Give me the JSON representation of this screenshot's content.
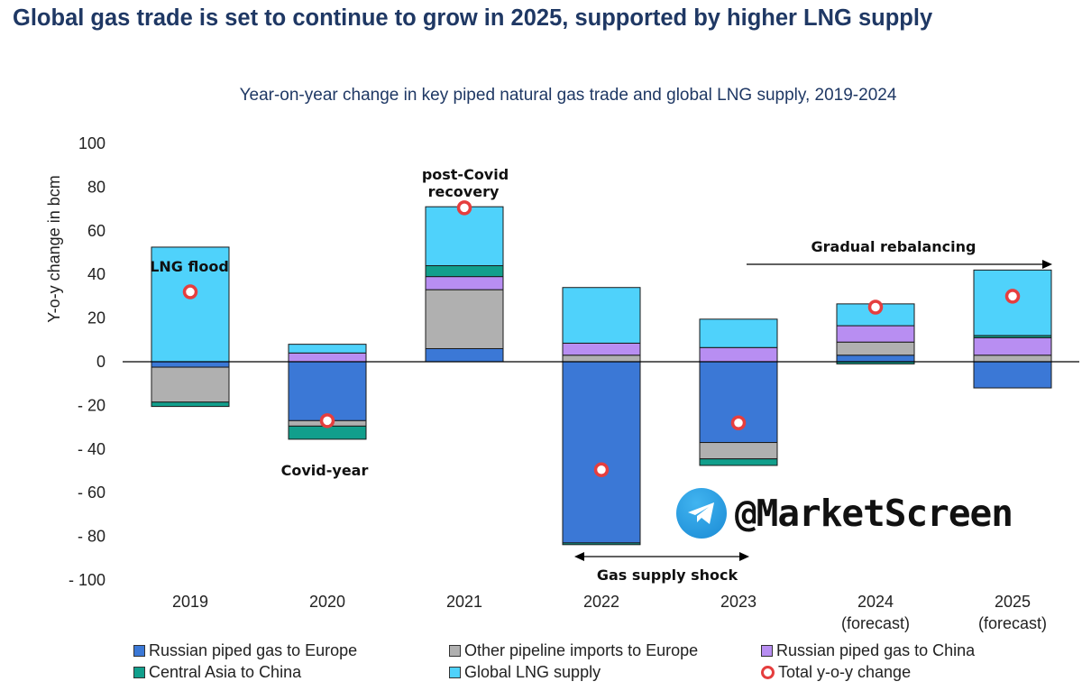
{
  "headline": "Global gas trade is set to continue to grow in 2025, supported by higher LNG supply",
  "chart_data": {
    "type": "bar",
    "stacked": true,
    "title": "Year-on-year change in key piped natural gas trade and global LNG supply, 2019-2024",
    "ylabel": "Y-o-y change in bcm",
    "ylim": [
      -100,
      100
    ],
    "yticks": [
      100,
      80,
      60,
      40,
      20,
      0,
      -20,
      -40,
      -60,
      -80,
      -100
    ],
    "ytick_labels": [
      "100",
      "80",
      "60",
      "40",
      "20",
      "0",
      "- 20",
      "- 40",
      "- 60",
      "- 80",
      "- 100"
    ],
    "categories": [
      "2019",
      "2020",
      "2021",
      "2022",
      "2023",
      "2024",
      "2025"
    ],
    "category_sublabels": [
      "",
      "",
      "",
      "",
      "",
      "(forecast)",
      "(forecast)"
    ],
    "series": [
      {
        "name": "Russian piped gas to Europe",
        "color": "#3b78d6",
        "values": [
          -2.5,
          -27,
          6,
          -83,
          -37,
          3,
          -12
        ]
      },
      {
        "name": "Other pipeline imports to Europe",
        "color": "#b0b0b0",
        "values": [
          -16,
          -2.5,
          27,
          3,
          -7.5,
          6,
          3
        ]
      },
      {
        "name": "Russian piped gas to China",
        "color": "#b88ef2",
        "values": [
          0,
          4,
          6,
          5.5,
          6.5,
          7.5,
          8
        ]
      },
      {
        "name": "Central Asia to China",
        "color": "#119f8c",
        "values": [
          -2,
          -6,
          5,
          -0.8,
          -3,
          -1,
          1
        ]
      },
      {
        "name": "Global LNG supply",
        "color": "#4fd2fb",
        "values": [
          52.5,
          4,
          27,
          25.5,
          13,
          10,
          30
        ]
      }
    ],
    "total": {
      "name": "Total y-o-y change",
      "color": "#e53e3e",
      "values": [
        32,
        -27,
        70.5,
        -49.5,
        -28,
        25,
        30
      ]
    },
    "annotations": [
      {
        "text": "LNG flood"
      },
      {
        "text": "Covid-year"
      },
      {
        "text": "post-Covid"
      },
      {
        "text": "recovery"
      },
      {
        "text": "Gradual rebalancing"
      },
      {
        "text": "Gas supply shock"
      }
    ]
  },
  "watermark": {
    "text": "@MarketScreen",
    "icon": "telegram-icon"
  }
}
